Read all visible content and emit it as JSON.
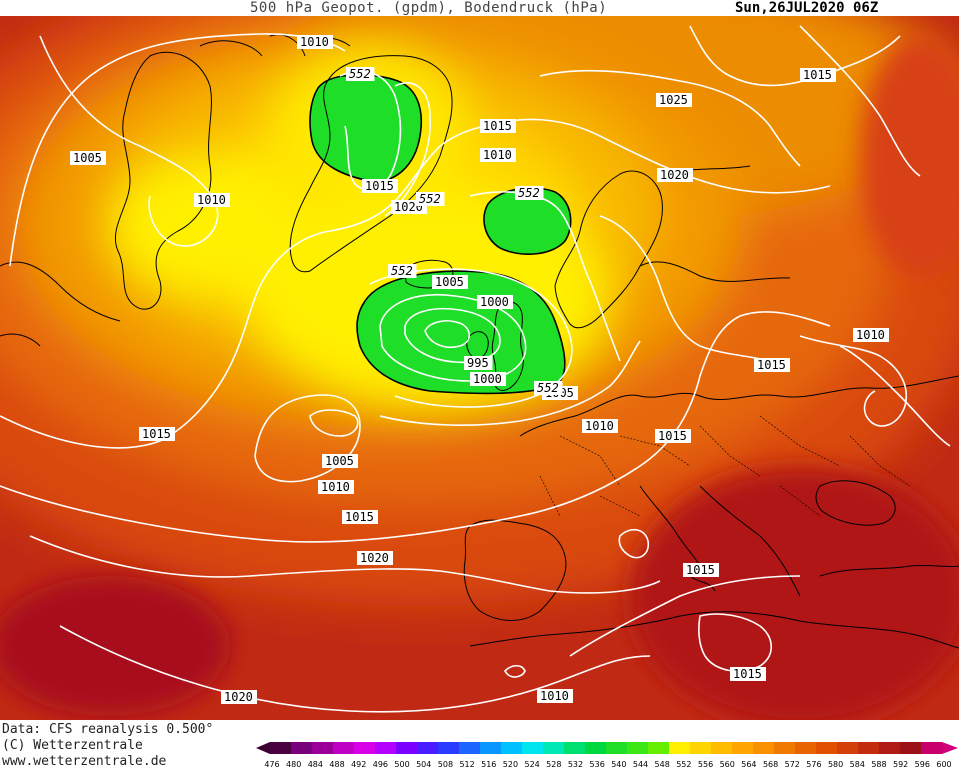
{
  "header": {
    "title": "500 hPa Geopot. (gpdm), Bodendruck (hPa)",
    "datetime": "Sun,26JUL2020 06Z"
  },
  "footer": {
    "line1": "Data: CFS reanalysis 0.500°",
    "line2": "(C) Wetterzentrale",
    "line3": "www.wetterzentrale.de"
  },
  "legend": {
    "ticks": [
      "476",
      "480",
      "484",
      "488",
      "492",
      "496",
      "500",
      "504",
      "508",
      "512",
      "516",
      "520",
      "524",
      "528",
      "532",
      "536",
      "540",
      "544",
      "548",
      "552",
      "556",
      "560",
      "564",
      "568",
      "572",
      "576",
      "580",
      "584",
      "588",
      "592",
      "596",
      "600"
    ],
    "colors": [
      "#4b0040",
      "#78007a",
      "#9a0099",
      "#bf00c4",
      "#d800e8",
      "#b400ff",
      "#7c00ff",
      "#4a1cff",
      "#2a3cff",
      "#1e64ff",
      "#0a96ff",
      "#00c0ff",
      "#00e6f0",
      "#00e8b4",
      "#00e070",
      "#00d840",
      "#1ede28",
      "#3ae614",
      "#66ee00",
      "#fff000",
      "#ffd400",
      "#ffbc00",
      "#ffa600",
      "#f89000",
      "#f07a00",
      "#e86400",
      "#e05000",
      "#d43e08",
      "#c42c10",
      "#b01c14",
      "#9c1018",
      "#c8006c"
    ]
  },
  "map": {
    "heights": [
      {
        "label": "552"
      },
      {
        "label": "552"
      },
      {
        "label": "552"
      },
      {
        "label": "552"
      },
      {
        "label": "552"
      }
    ],
    "isobars": [
      {
        "label": "1010"
      },
      {
        "label": "1005"
      },
      {
        "label": "1015"
      },
      {
        "label": "1010"
      },
      {
        "label": "1015"
      },
      {
        "label": "1020"
      },
      {
        "label": "1010"
      },
      {
        "label": "1025"
      },
      {
        "label": "1020"
      },
      {
        "label": "1015"
      },
      {
        "label": "1005"
      },
      {
        "label": "1000"
      },
      {
        "label": "995"
      },
      {
        "label": "1000"
      },
      {
        "label": "1005"
      },
      {
        "label": "1010"
      },
      {
        "label": "1015"
      },
      {
        "label": "1005"
      },
      {
        "label": "1010"
      },
      {
        "label": "1015"
      },
      {
        "label": "1010"
      },
      {
        "label": "1015"
      },
      {
        "label": "1015"
      },
      {
        "label": "1020"
      },
      {
        "label": "1015"
      },
      {
        "label": "1015"
      },
      {
        "label": "1020"
      },
      {
        "label": "1010"
      }
    ]
  }
}
